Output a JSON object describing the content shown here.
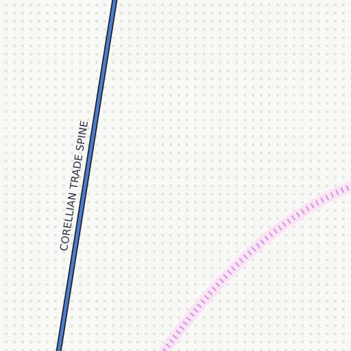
{
  "map": {
    "background_color": "#f8f8f6",
    "dot_color": "#e4e3da",
    "route": {
      "label": "CORELLIAN TRADE SPINE",
      "fill_color": "#4f7bc9",
      "casing_color": "#1c2233",
      "label_color": "#2b3040"
    },
    "boundary": {
      "line_color": "#cf9ce0",
      "glow_color": "#fbe3f6"
    }
  }
}
